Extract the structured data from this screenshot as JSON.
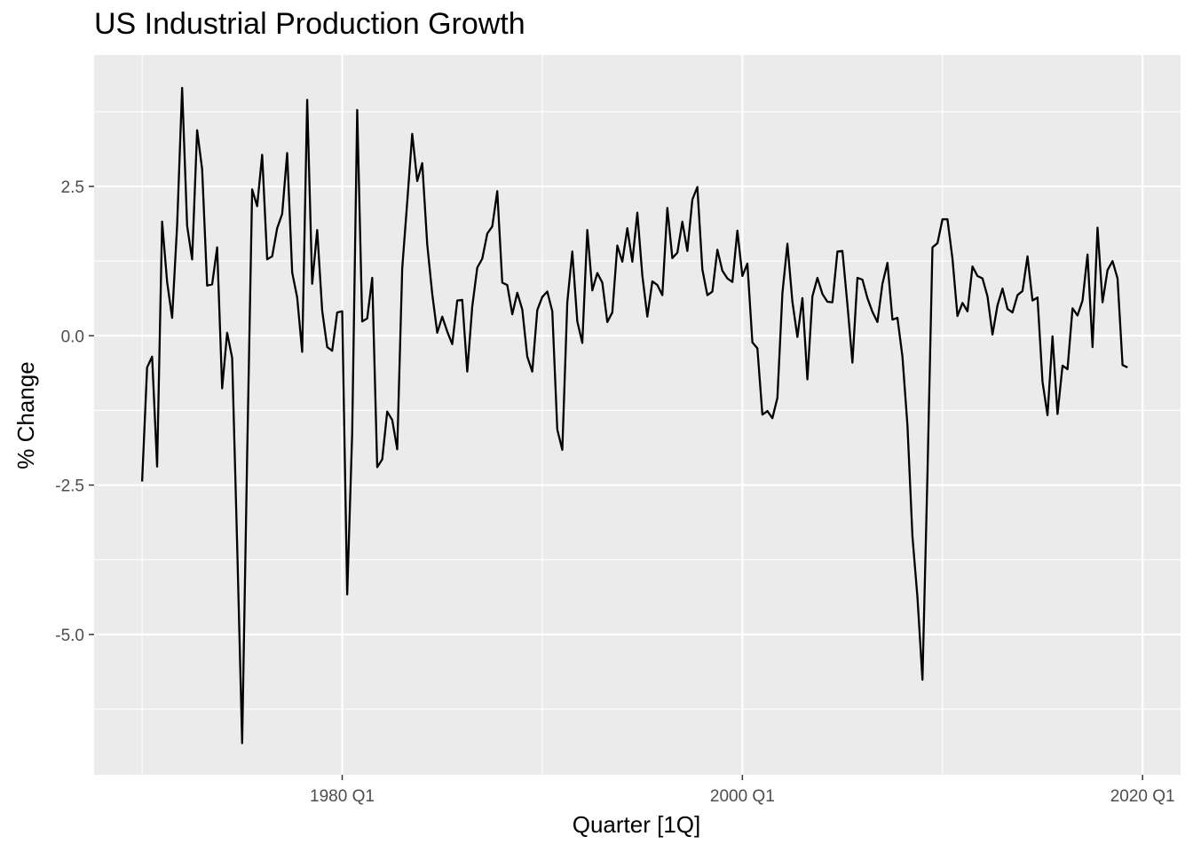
{
  "chart_data": {
    "type": "line",
    "title": "US Industrial Production Growth",
    "xlabel": "Quarter [1Q]",
    "ylabel": "% Change",
    "x_start": "1970 Q1",
    "x_step": "1 quarter",
    "xticks": [
      {
        "value": 1980,
        "label": "1980 Q1"
      },
      {
        "value": 2000,
        "label": "2000 Q1"
      },
      {
        "value": 2020,
        "label": "2020 Q1"
      }
    ],
    "yticks": [
      {
        "value": 2.5,
        "label": "2.5"
      },
      {
        "value": 0,
        "label": "0.0"
      },
      {
        "value": -2.5,
        "label": "-2.5"
      },
      {
        "value": -5,
        "label": "-5.0"
      }
    ],
    "xlim": [
      1967.6,
      2021.9
    ],
    "ylim": [
      -7.35,
      4.7
    ],
    "grid": true,
    "colors": {
      "panel": "#ebebeb",
      "grid": "#ffffff",
      "line": "#000000"
    },
    "series": [
      {
        "values": [
          -2.44,
          -0.53,
          -0.35,
          -2.19,
          1.91,
          0.9,
          0.3,
          1.85,
          4.15,
          1.84,
          1.28,
          3.44,
          2.79,
          0.84,
          0.86,
          1.48,
          -0.88,
          0.05,
          -0.37,
          -3.5,
          -6.82,
          -2.0,
          2.45,
          2.17,
          3.03,
          1.28,
          1.33,
          1.8,
          2.04,
          3.06,
          1.06,
          0.64,
          -0.27,
          3.95,
          0.87,
          1.77,
          0.42,
          -0.19,
          -0.25,
          0.39,
          0.41,
          -4.33,
          -1.62,
          3.78,
          0.24,
          0.29,
          0.97,
          -2.2,
          -2.07,
          -1.27,
          -1.41,
          -1.9,
          1.13,
          2.24,
          3.38,
          2.59,
          2.89,
          1.53,
          0.7,
          0.05,
          0.32,
          0.07,
          -0.14,
          0.59,
          0.6,
          -0.6,
          0.49,
          1.14,
          1.29,
          1.71,
          1.83,
          2.42,
          0.89,
          0.85,
          0.36,
          0.72,
          0.44,
          -0.35,
          -0.6,
          0.43,
          0.65,
          0.74,
          0.41,
          -1.57,
          -1.91,
          0.56,
          1.41,
          0.24,
          -0.12,
          1.77,
          0.76,
          1.05,
          0.89,
          0.23,
          0.39,
          1.51,
          1.24,
          1.8,
          1.24,
          2.06,
          1.01,
          0.32,
          0.91,
          0.85,
          0.68,
          2.14,
          1.3,
          1.39,
          1.91,
          1.42,
          2.28,
          2.49,
          1.11,
          0.68,
          0.74,
          1.44,
          1.09,
          0.96,
          0.9,
          1.76,
          1.0,
          1.21,
          -0.11,
          -0.21,
          -1.32,
          -1.26,
          -1.38,
          -1.04,
          0.71,
          1.54,
          0.57,
          -0.02,
          0.63,
          -0.73,
          0.66,
          0.97,
          0.7,
          0.57,
          0.56,
          1.41,
          1.42,
          0.52,
          -0.45,
          0.97,
          0.94,
          0.63,
          0.4,
          0.23,
          0.87,
          1.22,
          0.27,
          0.3,
          -0.35,
          -1.5,
          -3.36,
          -4.38,
          -5.76,
          -2.32,
          1.48,
          1.55,
          1.95,
          1.95,
          1.29,
          0.33,
          0.55,
          0.41,
          1.16,
          1.0,
          0.96,
          0.66,
          0.02,
          0.51,
          0.79,
          0.45,
          0.39,
          0.68,
          0.75,
          1.33,
          0.59,
          0.64,
          -0.77,
          -1.33,
          -0.01,
          -1.31,
          -0.5,
          -0.56,
          0.46,
          0.34,
          0.59,
          1.36,
          -0.19,
          1.81,
          0.56,
          1.1,
          1.25,
          0.96,
          -0.49,
          -0.53
        ]
      }
    ]
  }
}
